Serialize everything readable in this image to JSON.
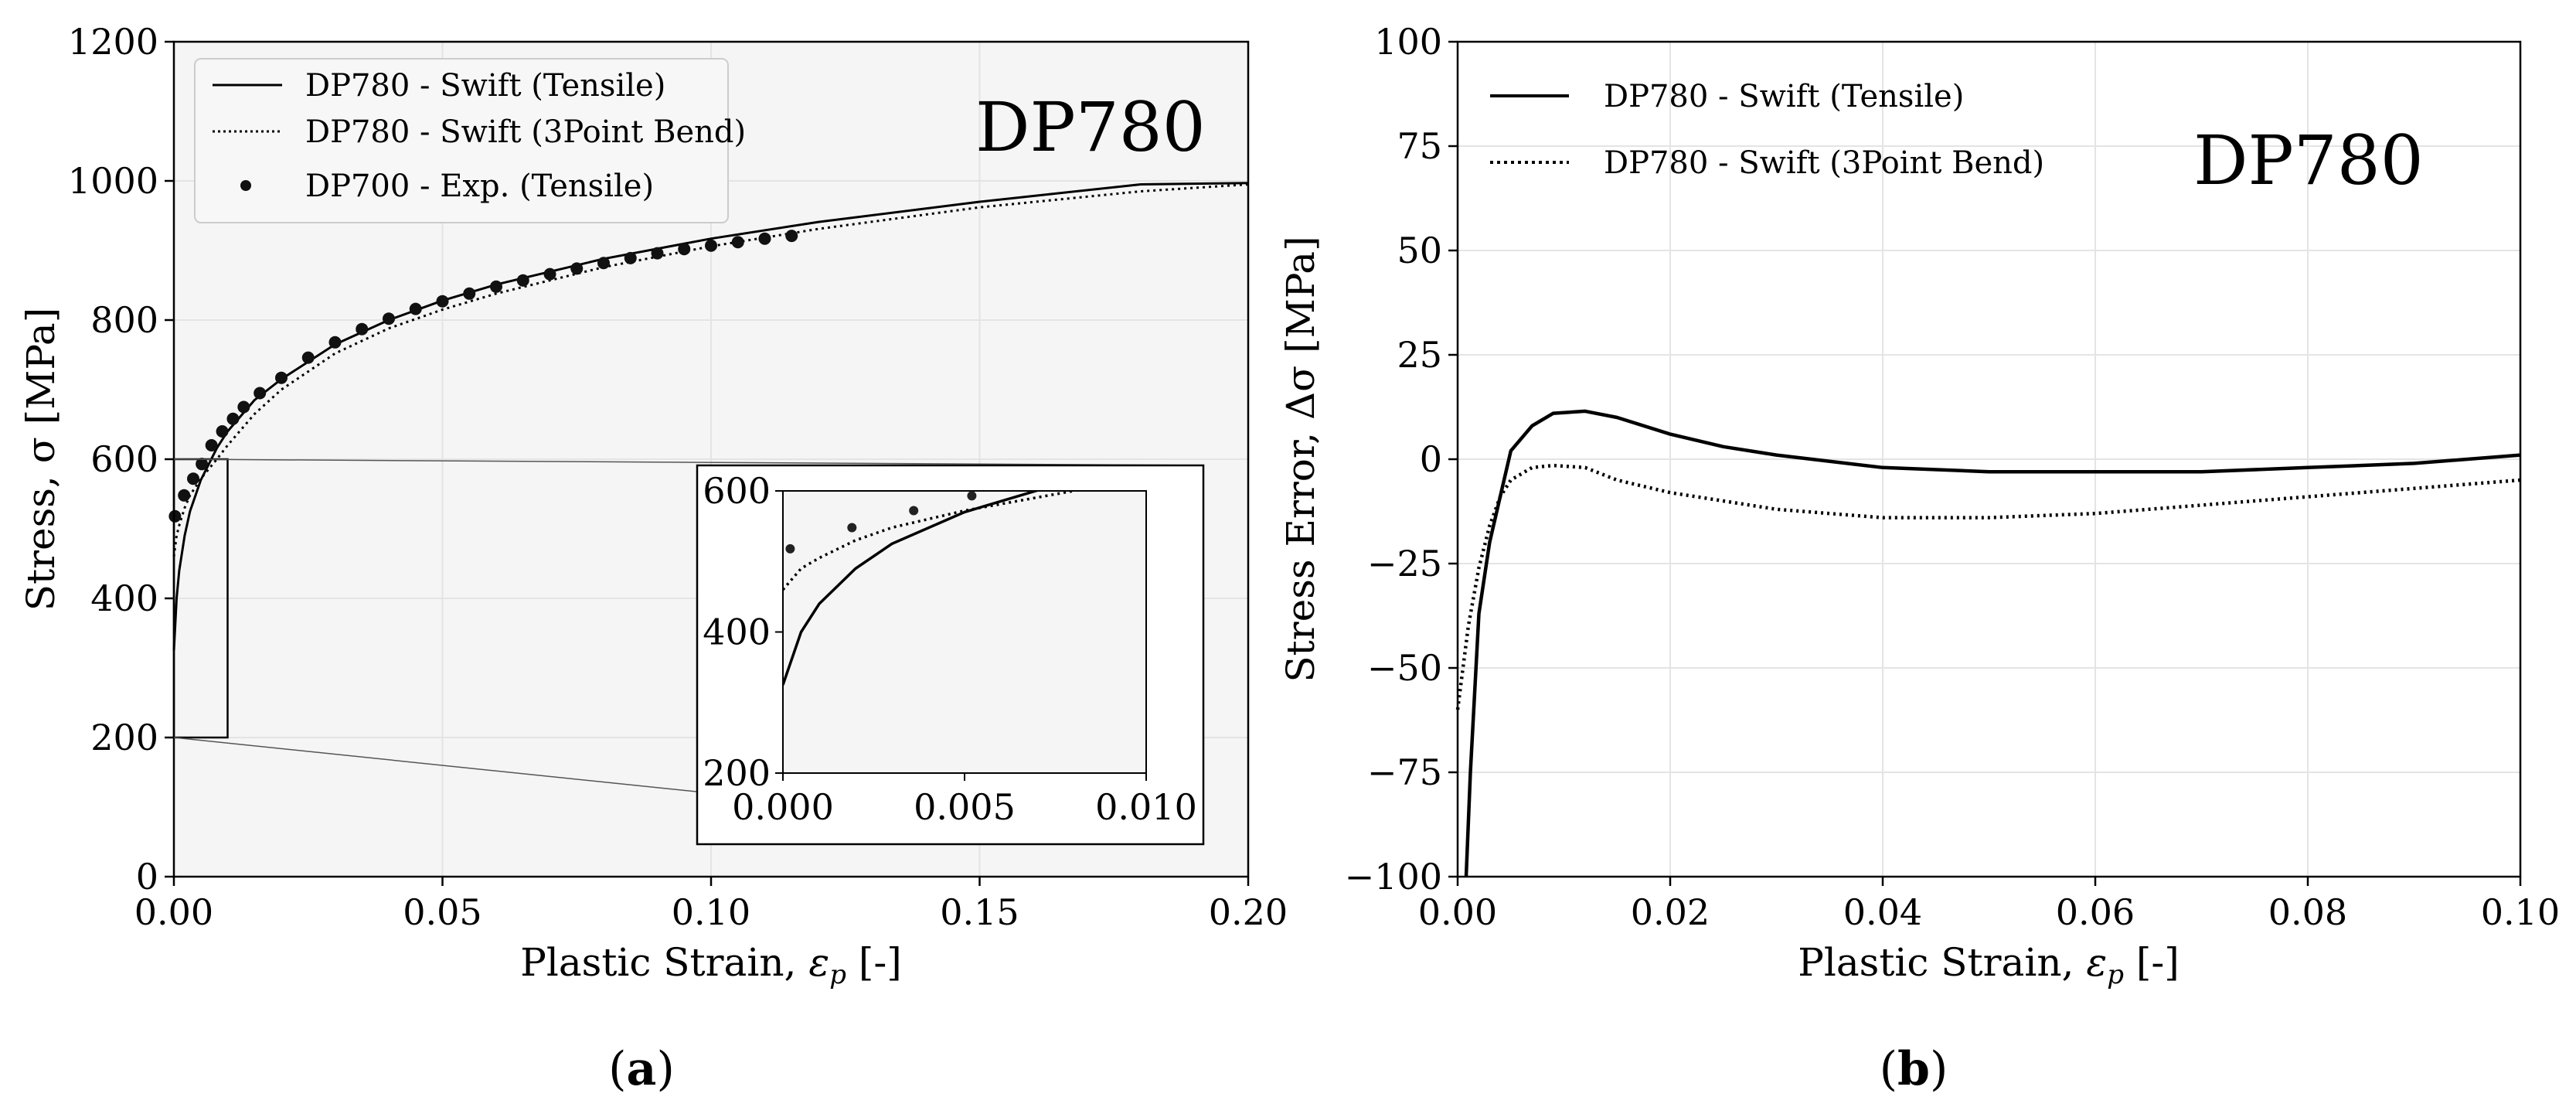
{
  "chart_data": [
    {
      "type": "line",
      "panel_label": "(a)",
      "panel_letter": "a",
      "annotation": "DP780",
      "xlabel": "Plastic Strain, ε_p [-]",
      "xlabel_parts": {
        "main": "Plastic Strain, ",
        "sym": "ε",
        "sub": "p",
        "tail": " [-]"
      },
      "ylabel": "Stress, σ [MPa]",
      "xlim": [
        0,
        0.2
      ],
      "ylim": [
        0,
        1200
      ],
      "x_ticks": [
        "0.00",
        "0.05",
        "0.10",
        "0.15",
        "0.20"
      ],
      "y_ticks": [
        "0",
        "200",
        "400",
        "600",
        "800",
        "1000",
        "1200"
      ],
      "grid": true,
      "legend_position": "top-left",
      "series": [
        {
          "name": "DP780 - Swift (Tensile)",
          "style": "solid",
          "x": [
            0,
            0.0005,
            0.001,
            0.002,
            0.003,
            0.005,
            0.008,
            0.01,
            0.015,
            0.02,
            0.03,
            0.04,
            0.05,
            0.06,
            0.08,
            0.1,
            0.12,
            0.15,
            0.18,
            0.2
          ],
          "y": [
            325,
            400,
            440,
            490,
            525,
            570,
            616,
            640,
            685,
            715,
            765,
            800,
            828,
            851,
            888,
            917,
            941,
            970,
            995,
            997
          ]
        },
        {
          "name": "DP780 - Swift (3Point Bend)",
          "style": "dotted",
          "x": [
            0,
            0.0005,
            0.001,
            0.002,
            0.003,
            0.005,
            0.008,
            0.01,
            0.015,
            0.02,
            0.03,
            0.04,
            0.05,
            0.06,
            0.08,
            0.1,
            0.12,
            0.15,
            0.18,
            0.2
          ],
          "y": [
            460,
            490,
            505,
            530,
            548,
            572,
            600,
            620,
            665,
            700,
            752,
            788,
            815,
            838,
            876,
            906,
            931,
            962,
            985,
            995
          ]
        },
        {
          "name": "DP700 - Exp. (Tensile)",
          "style": "markers",
          "x": [
            0.0002,
            0.0019,
            0.0036,
            0.0052,
            0.007,
            0.009,
            0.011,
            0.013,
            0.016,
            0.02,
            0.025,
            0.03,
            0.035,
            0.04,
            0.045,
            0.05,
            0.055,
            0.06,
            0.065,
            0.07,
            0.075,
            0.08,
            0.085,
            0.09,
            0.095,
            0.1,
            0.105,
            0.11,
            0.115
          ],
          "y": [
            518,
            548,
            572,
            593,
            620,
            640,
            658,
            675,
            695,
            717,
            746,
            768,
            787,
            802,
            816,
            827,
            838,
            848,
            857,
            866,
            874,
            882,
            889,
            896,
            902,
            907,
            912,
            917,
            921
          ]
        }
      ],
      "inset": {
        "xlim": [
          0,
          0.01
        ],
        "ylim": [
          200,
          600
        ],
        "x_ticks": [
          "0.000",
          "0.005",
          "0.010"
        ],
        "y_ticks": [
          "200",
          "400",
          "600"
        ]
      }
    },
    {
      "type": "line",
      "panel_label": "(b)",
      "panel_letter": "b",
      "annotation": "DP780",
      "xlabel": "Plastic Strain, ε_p [-]",
      "xlabel_parts": {
        "main": "Plastic Strain, ",
        "sym": "ε",
        "sub": "p",
        "tail": " [-]"
      },
      "ylabel": "Stress Error, Δσ [MPa]",
      "xlim": [
        0,
        0.1
      ],
      "ylim": [
        -100,
        100
      ],
      "x_ticks": [
        "0.00",
        "0.02",
        "0.04",
        "0.06",
        "0.08",
        "0.10"
      ],
      "y_ticks": [
        "−100",
        "−75",
        "−50",
        "−25",
        "0",
        "25",
        "50",
        "75",
        "100"
      ],
      "grid": true,
      "legend_position": "top-left",
      "series": [
        {
          "name": "DP780 - Swift (Tensile)",
          "style": "solid",
          "x": [
            0.0008,
            0.0012,
            0.002,
            0.003,
            0.004,
            0.005,
            0.007,
            0.009,
            0.012,
            0.015,
            0.02,
            0.025,
            0.03,
            0.04,
            0.05,
            0.06,
            0.07,
            0.08,
            0.09,
            0.1
          ],
          "y": [
            -100,
            -75,
            -37,
            -20,
            -9,
            2,
            8,
            11,
            11.5,
            10,
            6,
            3,
            1,
            -2,
            -3,
            -3,
            -3,
            -2,
            -1,
            1
          ]
        },
        {
          "name": "DP780 - Swift (3Point Bend)",
          "style": "dotted",
          "x": [
            0,
            0.001,
            0.002,
            0.003,
            0.004,
            0.005,
            0.007,
            0.009,
            0.012,
            0.015,
            0.02,
            0.03,
            0.04,
            0.05,
            0.06,
            0.07,
            0.08,
            0.09,
            0.1
          ],
          "y": [
            -60,
            -40,
            -26,
            -16,
            -9,
            -5,
            -2,
            -1.5,
            -2,
            -5,
            -8,
            -12,
            -14,
            -14,
            -13,
            -11,
            -9,
            -7,
            -5
          ]
        }
      ]
    }
  ]
}
